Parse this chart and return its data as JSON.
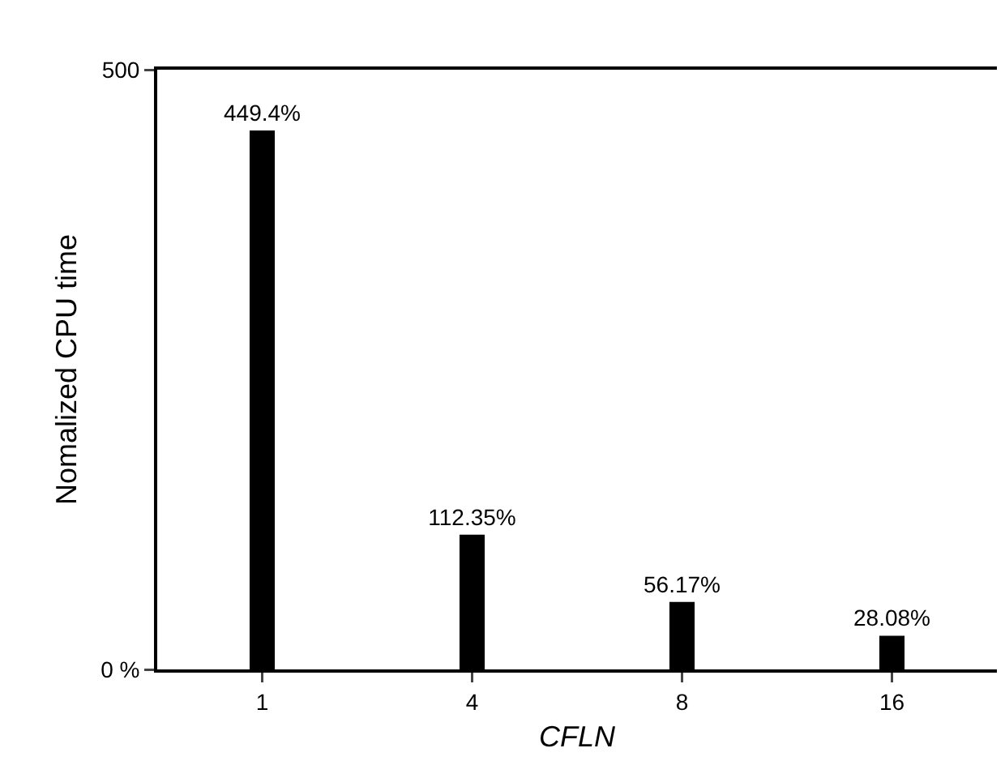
{
  "chart_data": {
    "type": "bar",
    "xlabel": "CFLN",
    "ylabel": "Nomalized CPU time",
    "categories": [
      "1",
      "4",
      "8",
      "16"
    ],
    "values": [
      449.4,
      112.35,
      56.17,
      28.08
    ],
    "value_labels": [
      "449.4%",
      "112.35%",
      "56.17%",
      "28.08%"
    ],
    "color": "#000000",
    "ylim": [
      0,
      500
    ],
    "yticks": [
      {
        "value": 0,
        "label": "0 %"
      },
      500
    ],
    "grid": false
  }
}
